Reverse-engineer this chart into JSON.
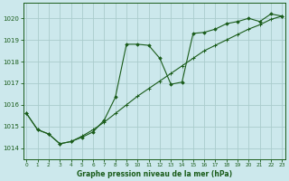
{
  "title": "Graphe pression niveau de la mer (hPa)",
  "bg_color": "#cce8ec",
  "grid_color": "#aacccc",
  "line_color": "#1a5c1a",
  "marker_color": "#1a5c1a",
  "xlabel": "Graphe pression niveau de la mer (hPa)",
  "ylim": [
    1013.5,
    1020.7
  ],
  "xlim": [
    -0.3,
    23.3
  ],
  "yticks": [
    1014,
    1015,
    1016,
    1017,
    1018,
    1019,
    1020
  ],
  "xticks": [
    0,
    1,
    2,
    3,
    4,
    5,
    6,
    7,
    8,
    9,
    10,
    11,
    12,
    13,
    14,
    15,
    16,
    17,
    18,
    19,
    20,
    21,
    22,
    23
  ],
  "series1_x": [
    0,
    1,
    2,
    3,
    4,
    5,
    6,
    7,
    8,
    9,
    10,
    11,
    12,
    13,
    14,
    15,
    16,
    17,
    18,
    19,
    20,
    21,
    22,
    23
  ],
  "series1_y": [
    1015.6,
    1014.85,
    1014.65,
    1014.2,
    1014.3,
    1014.5,
    1014.75,
    1015.3,
    1016.35,
    1018.8,
    1018.8,
    1018.75,
    1018.15,
    1016.95,
    1017.05,
    1019.3,
    1019.35,
    1019.5,
    1019.75,
    1019.85,
    1020.0,
    1019.85,
    1020.2,
    1020.1
  ],
  "series2_x": [
    0,
    1,
    2,
    3,
    4,
    5,
    6,
    7,
    8,
    9,
    10,
    11,
    12,
    13,
    14,
    15,
    16,
    17,
    18,
    19,
    20,
    21,
    22,
    23
  ],
  "series2_y": [
    1015.6,
    1014.85,
    1014.65,
    1014.2,
    1014.3,
    1014.55,
    1014.85,
    1015.2,
    1015.6,
    1016.0,
    1016.4,
    1016.75,
    1017.1,
    1017.45,
    1017.8,
    1018.15,
    1018.5,
    1018.75,
    1019.0,
    1019.25,
    1019.5,
    1019.7,
    1019.95,
    1020.1
  ]
}
